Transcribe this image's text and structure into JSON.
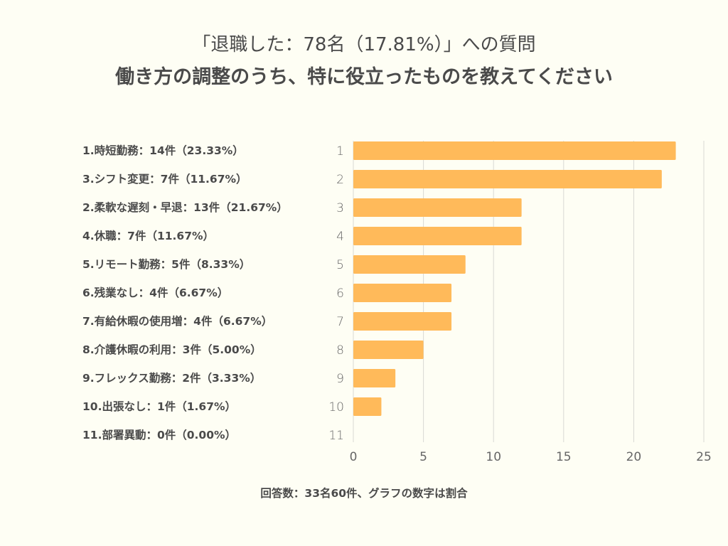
{
  "header": {
    "title_line1": "「退職した：78名（17.81%）」への質問",
    "title_line2": "働き方の調整のうち、特に役立ったものを教えてください"
  },
  "legend_labels": [
    "1.時短勤務：14件（23.33%）",
    "3.シフト変更：7件（11.67%）",
    "2.柔軟な遅刻・早退：13件（21.67%）",
    "4.休職：7件（11.67%）",
    "5.リモート勤務：5件（8.33%）",
    "6.残業なし：4件（6.67%）",
    "7.有給休暇の使用増：4件（6.67%）",
    "8.介護休暇の利用：3件（5.00%）",
    "9.フレックス勤務：2件（3.33%）",
    "10.出張なし：1件（1.67%）",
    "11.部署異動：0件（0.00%）"
  ],
  "footer": {
    "note": "回答数：33名60件、グラフの数字は割合"
  },
  "colors": {
    "bar": "#FFBA5A",
    "background": "#FEFEF4",
    "grid": "#D9D9D4",
    "text": "#4A4A4A"
  },
  "chart_data": {
    "type": "bar",
    "orientation": "horizontal",
    "title": "「退職した：78名（17.81%）」への質問 働き方の調整のうち、特に役立ったものを教えてください",
    "categories": [
      "1",
      "2",
      "3",
      "4",
      "5",
      "6",
      "7",
      "8",
      "9",
      "10",
      "11"
    ],
    "values": [
      23,
      22,
      12,
      12,
      8,
      7,
      7,
      5,
      3,
      2,
      0
    ],
    "xlabel": "",
    "ylabel": "",
    "xlim": [
      0,
      25
    ],
    "xticks": [
      0,
      5,
      10,
      15,
      20,
      25
    ],
    "grid": true,
    "legend_placement": "left"
  }
}
